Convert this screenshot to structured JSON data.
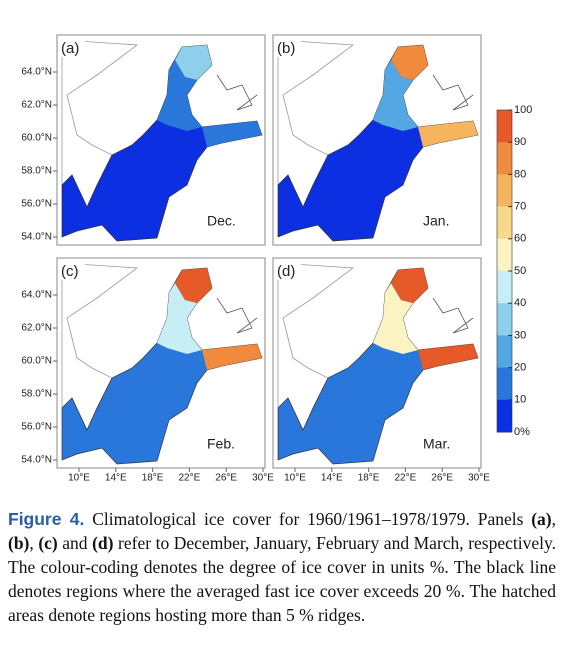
{
  "figure": {
    "panels": [
      {
        "label": "(a)",
        "month": "Dec."
      },
      {
        "label": "(b)",
        "month": "Jan."
      },
      {
        "label": "(c)",
        "month": "Feb."
      },
      {
        "label": "(d)",
        "month": "Mar."
      }
    ],
    "lat_labels": [
      "64.0°N",
      "62.0°N",
      "60.0°N",
      "58.0°N",
      "56.0°N",
      "54.0°N"
    ],
    "lon_labels": [
      "10°E",
      "14°E",
      "18°E",
      "22°E",
      "26°E",
      "30°E"
    ],
    "colorbar": {
      "ticks": [
        100,
        90,
        80,
        70,
        60,
        50,
        40,
        30,
        20,
        10,
        {
          "value": 0,
          "label": "0%"
        }
      ],
      "colors": [
        "#e55a28",
        "#f08a3c",
        "#f6b45c",
        "#f8d98c",
        "#fbf3c2",
        "#c8eef5",
        "#8ed0ec",
        "#53a8e3",
        "#2a77dc",
        "#0c2fe2"
      ]
    }
  },
  "caption": {
    "label": "Figure 4.",
    "parts": [
      "Climatological ice cover for 1960/1961–1978/1979. Panels ",
      "(a)",
      ", ",
      "(b)",
      ", ",
      "(c)",
      " and ",
      "(d)",
      " refer to December, January, February and March, respectively. The colour-coding denotes the degree of ice cover in units %. The black line denotes regions where the averaged fast ice cover exceeds 20 %. The hatched areas denote regions hosting more than 5 % ridges."
    ]
  }
}
